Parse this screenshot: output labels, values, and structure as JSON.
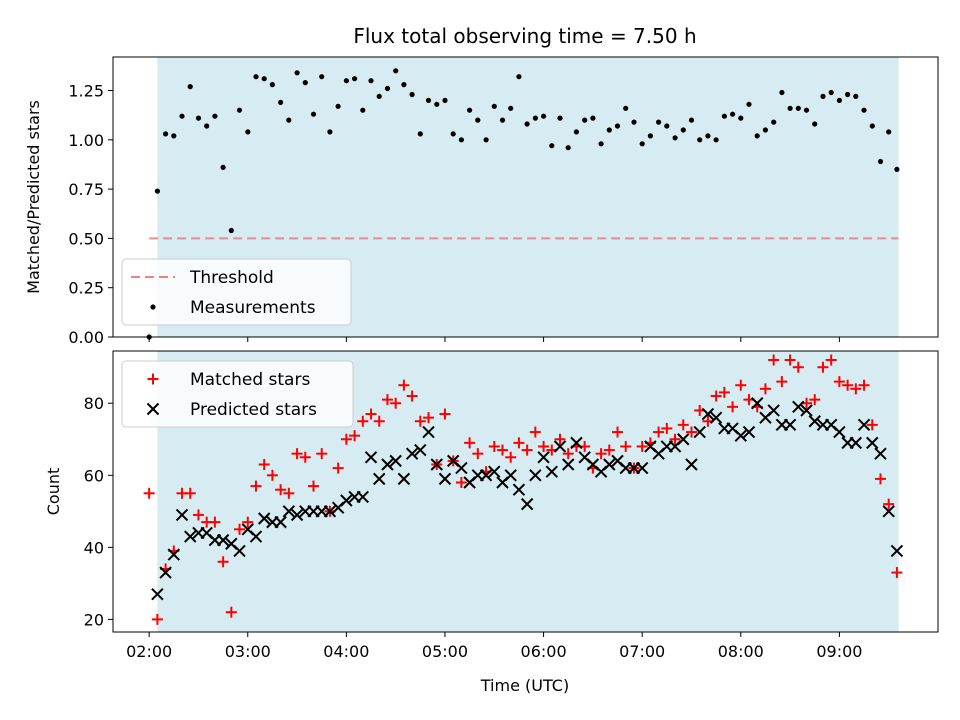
{
  "figure": {
    "title": "Flux total observing time = 7.50 h"
  },
  "colors": {
    "shade": "#ADD8E6",
    "threshold": "#F08080",
    "measurement": "#000000",
    "matched": "#FF0000",
    "predicted": "#000000"
  },
  "chart_data": [
    {
      "type": "scatter",
      "ylabel": "Matched/Predicted stars",
      "xlabel": "",
      "ylim": [
        0,
        1.42
      ],
      "yticks": [
        0.0,
        0.25,
        0.5,
        0.75,
        1.0,
        1.25
      ],
      "ytick_labels": [
        "0.00",
        "0.25",
        "0.50",
        "0.75",
        "1.00",
        "1.25"
      ],
      "xlim": [
        "01:38",
        "10:00"
      ],
      "shaded_span": [
        "02:05",
        "09:36"
      ],
      "legend": {
        "placement": "lower-left",
        "entries": [
          "Threshold",
          "Measurements"
        ]
      },
      "series": [
        {
          "name": "Threshold",
          "style": "dashed-line",
          "x": [
            "02:00",
            "09:36"
          ],
          "y": [
            0.5,
            0.5
          ]
        },
        {
          "name": "Measurements",
          "style": "dot",
          "x": [
            "02:00",
            "02:05",
            "02:10",
            "02:15",
            "02:20",
            "02:25",
            "02:30",
            "02:35",
            "02:40",
            "02:45",
            "02:50",
            "02:55",
            "03:00",
            "03:05",
            "03:10",
            "03:15",
            "03:20",
            "03:25",
            "03:30",
            "03:35",
            "03:40",
            "03:45",
            "03:50",
            "03:55",
            "04:00",
            "04:05",
            "04:10",
            "04:15",
            "04:20",
            "04:25",
            "04:30",
            "04:35",
            "04:40",
            "04:45",
            "04:50",
            "04:55",
            "05:00",
            "05:05",
            "05:10",
            "05:15",
            "05:20",
            "05:25",
            "05:30",
            "05:35",
            "05:40",
            "05:45",
            "05:50",
            "05:55",
            "06:00",
            "06:05",
            "06:10",
            "06:15",
            "06:20",
            "06:25",
            "06:30",
            "06:35",
            "06:40",
            "06:45",
            "06:50",
            "06:55",
            "07:00",
            "07:05",
            "07:10",
            "07:15",
            "07:20",
            "07:25",
            "07:30",
            "07:35",
            "07:40",
            "07:45",
            "07:50",
            "07:55",
            "08:00",
            "08:05",
            "08:10",
            "08:15",
            "08:20",
            "08:25",
            "08:30",
            "08:35",
            "08:40",
            "08:45",
            "08:50",
            "08:55",
            "09:00",
            "09:05",
            "09:10",
            "09:15",
            "09:20",
            "09:25",
            "09:30",
            "09:35"
          ],
          "y": [
            0.0,
            0.74,
            1.03,
            1.02,
            1.12,
            1.27,
            1.11,
            1.07,
            1.12,
            0.86,
            0.54,
            1.15,
            1.04,
            1.32,
            1.31,
            1.28,
            1.19,
            1.1,
            1.34,
            1.29,
            1.13,
            1.32,
            1.04,
            1.17,
            1.3,
            1.31,
            1.15,
            1.3,
            1.22,
            1.26,
            1.35,
            1.28,
            1.23,
            1.03,
            1.2,
            1.18,
            1.2,
            1.03,
            1.0,
            1.15,
            1.1,
            1.0,
            1.17,
            1.1,
            1.16,
            1.32,
            1.08,
            1.11,
            1.12,
            0.97,
            1.11,
            0.96,
            1.04,
            1.1,
            1.11,
            0.98,
            1.05,
            1.07,
            1.16,
            1.09,
            0.98,
            1.02,
            1.09,
            1.07,
            1.01,
            1.05,
            1.1,
            1.0,
            1.02,
            1.0,
            1.12,
            1.13,
            1.11,
            1.18,
            1.02,
            1.05,
            1.09,
            1.24,
            1.16,
            1.16,
            1.15,
            1.08,
            1.22,
            1.24,
            1.2,
            1.23,
            1.22,
            1.15,
            1.07,
            0.89,
            1.04,
            0.85
          ]
        }
      ]
    },
    {
      "type": "scatter",
      "ylabel": "Count",
      "xlabel": "Time (UTC)",
      "ylim": [
        16.5,
        94.5
      ],
      "yticks": [
        20,
        40,
        60,
        80
      ],
      "ytick_labels": [
        "20",
        "40",
        "60",
        "80"
      ],
      "xlim": [
        "01:38",
        "10:00"
      ],
      "xticks": [
        "02:00",
        "03:00",
        "04:00",
        "05:00",
        "06:00",
        "07:00",
        "08:00",
        "09:00"
      ],
      "xtick_labels": [
        "02:00",
        "03:00",
        "04:00",
        "05:00",
        "06:00",
        "07:00",
        "08:00",
        "09:00"
      ],
      "shaded_span": [
        "02:05",
        "09:36"
      ],
      "legend": {
        "placement": "upper-left",
        "entries": [
          "Matched stars",
          "Predicted stars"
        ]
      },
      "series": [
        {
          "name": "Matched stars",
          "marker": "plus",
          "x": [
            "02:00",
            "02:05",
            "02:10",
            "02:15",
            "02:20",
            "02:25",
            "02:30",
            "02:35",
            "02:40",
            "02:45",
            "02:50",
            "02:55",
            "03:00",
            "03:05",
            "03:10",
            "03:15",
            "03:20",
            "03:25",
            "03:30",
            "03:35",
            "03:40",
            "03:45",
            "03:50",
            "03:55",
            "04:00",
            "04:05",
            "04:10",
            "04:15",
            "04:20",
            "04:25",
            "04:30",
            "04:35",
            "04:40",
            "04:45",
            "04:50",
            "04:55",
            "05:00",
            "05:05",
            "05:10",
            "05:15",
            "05:20",
            "05:25",
            "05:30",
            "05:35",
            "05:40",
            "05:45",
            "05:50",
            "05:55",
            "06:00",
            "06:05",
            "06:10",
            "06:15",
            "06:20",
            "06:25",
            "06:30",
            "06:35",
            "06:40",
            "06:45",
            "06:50",
            "06:55",
            "07:00",
            "07:05",
            "07:10",
            "07:15",
            "07:20",
            "07:25",
            "07:30",
            "07:35",
            "07:40",
            "07:45",
            "07:50",
            "07:55",
            "08:00",
            "08:05",
            "08:10",
            "08:15",
            "08:20",
            "08:25",
            "08:30",
            "08:35",
            "08:40",
            "08:45",
            "08:50",
            "08:55",
            "09:00",
            "09:05",
            "09:10",
            "09:15",
            "09:20",
            "09:25",
            "09:30",
            "09:35"
          ],
          "y": [
            55,
            20,
            34,
            39,
            55,
            55,
            49,
            47,
            47,
            36,
            22,
            45,
            47,
            57,
            63,
            60,
            56,
            55,
            66,
            65,
            57,
            66,
            50,
            62,
            70,
            71,
            75,
            77,
            75,
            81,
            80,
            85,
            82,
            75,
            76,
            63,
            77,
            64,
            58,
            69,
            66,
            61,
            68,
            67,
            65,
            69,
            67,
            72,
            68,
            67,
            70,
            66,
            68,
            68,
            62,
            66,
            67,
            72,
            68,
            62,
            68,
            69,
            72,
            73,
            70,
            74,
            72,
            78,
            75,
            82,
            83,
            79,
            85,
            81,
            79,
            84,
            92,
            86,
            92,
            90,
            80,
            81,
            90,
            92,
            86,
            85,
            84,
            85,
            74,
            59,
            52,
            33
          ]
        },
        {
          "name": "Predicted stars",
          "marker": "x",
          "x": [
            "02:00",
            "02:05",
            "02:10",
            "02:15",
            "02:20",
            "02:25",
            "02:30",
            "02:35",
            "02:40",
            "02:45",
            "02:50",
            "02:55",
            "03:00",
            "03:05",
            "03:10",
            "03:15",
            "03:20",
            "03:25",
            "03:30",
            "03:35",
            "03:40",
            "03:45",
            "03:50",
            "03:55",
            "04:00",
            "04:05",
            "04:10",
            "04:15",
            "04:20",
            "04:25",
            "04:30",
            "04:35",
            "04:40",
            "04:45",
            "04:50",
            "04:55",
            "05:00",
            "05:05",
            "05:10",
            "05:15",
            "05:20",
            "05:25",
            "05:30",
            "05:35",
            "05:40",
            "05:45",
            "05:50",
            "05:55",
            "06:00",
            "06:05",
            "06:10",
            "06:15",
            "06:20",
            "06:25",
            "06:30",
            "06:35",
            "06:40",
            "06:45",
            "06:50",
            "06:55",
            "07:00",
            "07:05",
            "07:10",
            "07:15",
            "07:20",
            "07:25",
            "07:30",
            "07:35",
            "07:40",
            "07:45",
            "07:50",
            "07:55",
            "08:00",
            "08:05",
            "08:10",
            "08:15",
            "08:20",
            "08:25",
            "08:30",
            "08:35",
            "08:40",
            "08:45",
            "08:50",
            "08:55",
            "09:00",
            "09:05",
            "09:10",
            "09:15",
            "09:20",
            "09:25",
            "09:30",
            "09:35"
          ],
          "y": [
            null,
            27,
            33,
            38,
            49,
            43,
            44,
            44,
            42,
            42,
            41,
            39,
            45,
            43,
            48,
            47,
            47,
            50,
            49,
            50,
            50,
            50,
            50,
            51,
            53,
            54,
            54,
            65,
            59,
            63,
            64,
            59,
            66,
            67,
            72,
            63,
            59,
            64,
            62,
            58,
            60,
            60,
            61,
            58,
            60,
            56,
            52,
            60,
            65,
            61,
            68,
            63,
            69,
            65,
            63,
            61,
            63,
            64,
            62,
            62,
            62,
            68,
            66,
            68,
            68,
            70,
            63,
            72,
            77,
            76,
            73,
            73,
            71,
            72,
            80,
            76,
            78,
            74,
            74,
            79,
            78,
            75,
            74,
            74,
            72,
            69,
            69,
            74,
            69,
            66,
            50,
            39
          ]
        }
      ]
    }
  ]
}
